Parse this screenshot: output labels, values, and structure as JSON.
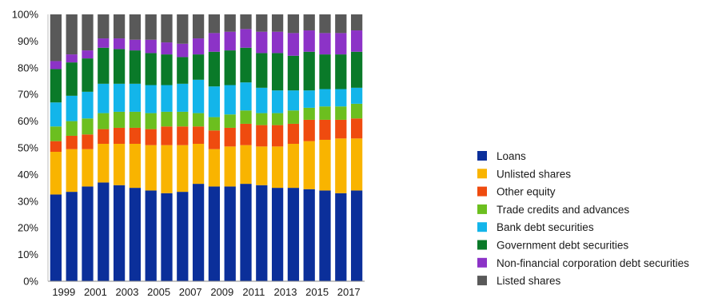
{
  "chart_data": {
    "type": "bar",
    "stacked": true,
    "percent": true,
    "title": "",
    "xlabel": "",
    "ylabel": "",
    "ylim": [
      0,
      100
    ],
    "yticks": [
      "0%",
      "10%",
      "20%",
      "30%",
      "40%",
      "50%",
      "60%",
      "70%",
      "80%",
      "90%",
      "100%"
    ],
    "categories": [
      "1999",
      "2000",
      "2001",
      "2002",
      "2003",
      "2004",
      "2005",
      "2006",
      "2007",
      "2008",
      "2009",
      "2010",
      "2011",
      "2012",
      "2013",
      "2014",
      "2015",
      "2016",
      "2017",
      "2018"
    ],
    "xtick_labels": [
      "1999",
      "",
      "2001",
      "",
      "2003",
      "",
      "2005",
      "",
      "2007",
      "",
      "2009",
      "",
      "2011",
      "",
      "2013",
      "",
      "2015",
      "",
      "2017",
      ""
    ],
    "grid": false,
    "legend_position": "right",
    "series": [
      {
        "name": "Loans",
        "color": "#0b2f9a",
        "values": [
          32.5,
          33.5,
          35.5,
          37,
          36,
          35,
          34,
          33,
          33.5,
          36.5,
          35.5,
          35.5,
          36.5,
          36,
          35,
          35,
          34.5,
          34,
          33,
          34
        ]
      },
      {
        "name": "Unlisted shares",
        "color": "#f9b400",
        "values": [
          16,
          16,
          14,
          14.5,
          15.5,
          16.5,
          17,
          18,
          17.5,
          15,
          14,
          15,
          14.5,
          14.5,
          15.5,
          16.5,
          18,
          19,
          20.5,
          19.5
        ]
      },
      {
        "name": "Other equity",
        "color": "#ef4b0f",
        "values": [
          4,
          5,
          5.5,
          5.5,
          6,
          6,
          6,
          7,
          7,
          6.5,
          7,
          7,
          8,
          8,
          8,
          7.5,
          8,
          7.5,
          7,
          7.5
        ]
      },
      {
        "name": "Trade credits and advances",
        "color": "#6cbf1f",
        "values": [
          5.5,
          5.5,
          6,
          6,
          6,
          6,
          6,
          5.5,
          5.5,
          5,
          5,
          5,
          5,
          4.5,
          4.5,
          5,
          4.5,
          5,
          5,
          5.5
        ]
      },
      {
        "name": "Bank debt securities",
        "color": "#13b5ea",
        "values": [
          9,
          9.5,
          10,
          11,
          10.5,
          10.5,
          10.5,
          10,
          10.5,
          12.5,
          11.5,
          11,
          10.5,
          9.5,
          8.5,
          7.5,
          6.5,
          6.5,
          6.5,
          6
        ]
      },
      {
        "name": "Government debt securities",
        "color": "#0a7a29",
        "values": [
          12.5,
          12.5,
          12.5,
          13.5,
          13,
          12.5,
          12,
          11.5,
          10,
          9.5,
          13,
          13,
          13,
          13,
          14,
          13,
          14.5,
          13,
          13,
          13.5
        ]
      },
      {
        "name": "Non-financial corporation debt securities",
        "color": "#8c33c7",
        "values": [
          3,
          3,
          3,
          3.5,
          4,
          4,
          5,
          4.5,
          5,
          6,
          7,
          7,
          7,
          8,
          8,
          8.5,
          8,
          8,
          8,
          8
        ]
      },
      {
        "name": "Listed shares",
        "color": "#595959",
        "values": [
          17.5,
          15,
          13.5,
          9,
          9,
          9.5,
          9.5,
          10.5,
          11,
          9,
          7,
          6.5,
          5.5,
          6.5,
          6.5,
          7,
          6,
          7,
          7,
          6
        ]
      }
    ]
  }
}
